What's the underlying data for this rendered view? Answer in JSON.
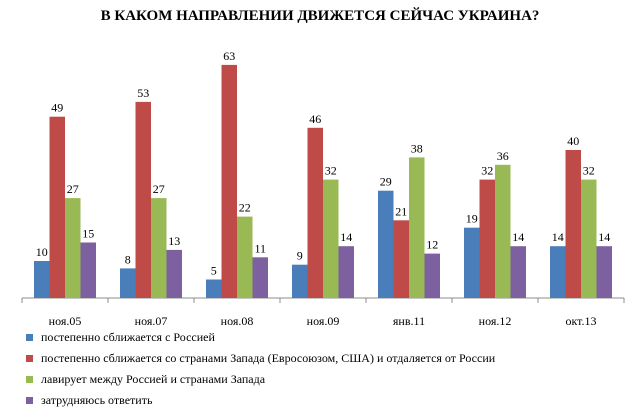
{
  "chart_data": {
    "type": "bar",
    "title": "В КАКОМ НАПРАВЛЕНИИ ДВИЖЕТСЯ СЕЙЧАС УКРАИНА?",
    "categories": [
      "ноя.05",
      "ноя.07",
      "ноя.08",
      "ноя.09",
      "янв.11",
      "ноя.12",
      "окт.13"
    ],
    "series": [
      {
        "name": "постепенно сближается с Россией",
        "color": "#4a7ebb",
        "values": [
          10,
          8,
          5,
          9,
          29,
          19,
          14
        ]
      },
      {
        "name": "постепенно сближается со странами Запада (Евросоюзом, США) и отдаляется от России",
        "color": "#be4b48",
        "values": [
          49,
          53,
          63,
          46,
          21,
          32,
          40
        ]
      },
      {
        "name": "лавирует между Россией и странами Запада",
        "color": "#98b954",
        "values": [
          27,
          27,
          22,
          32,
          38,
          36,
          32
        ]
      },
      {
        "name": "затрудняюсь ответить",
        "color": "#7d60a0",
        "values": [
          15,
          13,
          11,
          14,
          12,
          14,
          14
        ]
      }
    ],
    "ylim": [
      0,
      65
    ],
    "legend_position": "bottom",
    "grid": false
  }
}
